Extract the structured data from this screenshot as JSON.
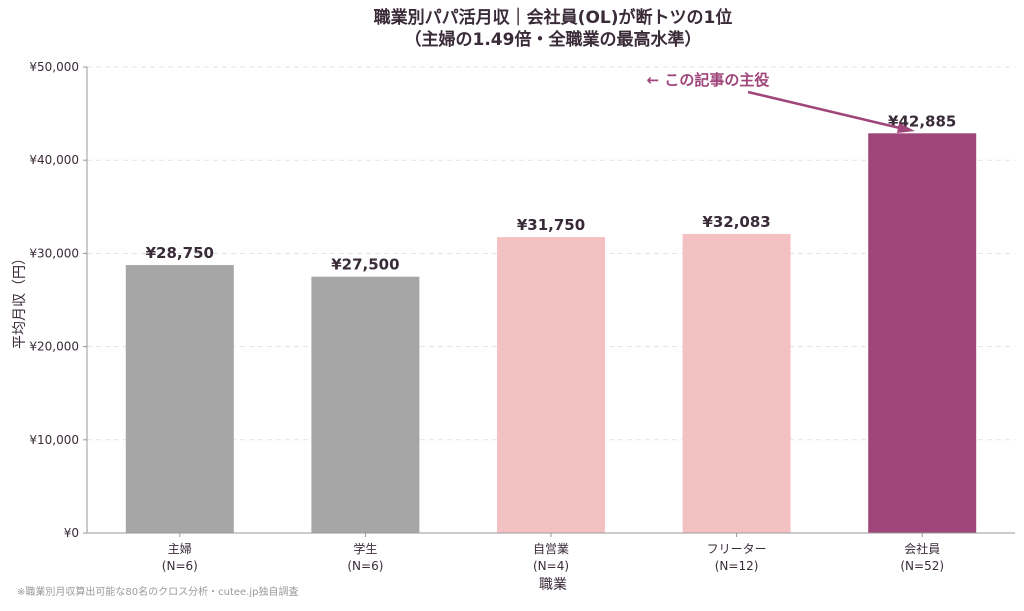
{
  "title_line1": "職業別パパ活月収｜会社員(OL)が断トツの1位",
  "title_line2": "（主婦の1.49倍・全職業の最高水準）",
  "footnote": "※職業別月収算出可能な80名のクロス分析・cutee.jp独自調査",
  "annotation": {
    "text": "← この記事の主役",
    "color": "#a0457a"
  },
  "chart_data": {
    "type": "bar",
    "title": "職業別パパ活月収｜会社員(OL)が断トツの1位（主婦の1.49倍・全職業の最高水準）",
    "xlabel": "職業",
    "ylabel": "平均月収（円）",
    "ylim": [
      0,
      50000
    ],
    "yticks": [
      0,
      10000,
      20000,
      30000,
      40000,
      50000
    ],
    "ytick_labels": [
      "¥0",
      "¥10,000",
      "¥20,000",
      "¥30,000",
      "¥40,000",
      "¥50,000"
    ],
    "grid": "horizontal-dashed",
    "categories": [
      "主婦",
      "学生",
      "自営業",
      "フリーター",
      "会社員"
    ],
    "category_sublabels": [
      "(N=6)",
      "(N=6)",
      "(N=4)",
      "(N=12)",
      "(N=52)"
    ],
    "values": [
      28750,
      27500,
      31750,
      32083,
      42885
    ],
    "value_labels": [
      "¥28,750",
      "¥27,500",
      "¥31,750",
      "¥32,083",
      "¥42,885"
    ],
    "colors": [
      "#a6a6a6",
      "#a6a6a6",
      "#f4c1c3",
      "#f4c1c3",
      "#9e4579"
    ]
  }
}
